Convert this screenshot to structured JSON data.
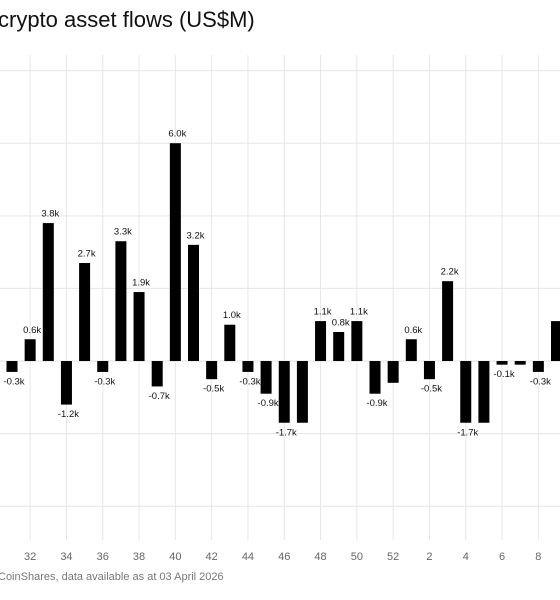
{
  "chart_data": {
    "type": "bar",
    "title": "crypto asset flows (US$M)",
    "source": "CoinShares, data available as at 03 April 2026",
    "categories": [
      null,
      "32",
      null,
      "34",
      null,
      "36",
      null,
      "38",
      null,
      "40",
      null,
      "42",
      null,
      "44",
      null,
      "46",
      null,
      "48",
      null,
      "50",
      null,
      "52",
      null,
      "2",
      null,
      "4",
      null,
      "6",
      null,
      "8",
      null
    ],
    "values": [
      -300,
      600,
      3800,
      -1200,
      2700,
      -300,
      3300,
      1900,
      -700,
      6000,
      3200,
      -500,
      1000,
      -300,
      -900,
      -1700,
      -1700,
      1100,
      800,
      1100,
      -900,
      -600,
      600,
      -500,
      2200,
      -1700,
      -1700,
      -100,
      -100,
      -300,
      1100
    ],
    "value_labels": [
      "-0.3k",
      "0.6k",
      "3.8k",
      "-1.2k",
      "2.7k",
      "-0.3k",
      "3.3k",
      "1.9k",
      "-0.7k",
      "6.0k",
      "3.2k",
      "-0.5k",
      "1.0k",
      "-0.3k",
      "-0.9k",
      "-1.7k",
      null,
      "1.1k",
      "0.8k",
      "1.1k",
      "-0.9k",
      null,
      "0.6k",
      "-0.5k",
      "2.2k",
      "-1.7k",
      null,
      "-0.1k",
      null,
      "-0.3k",
      null
    ],
    "color": "#000000",
    "ylim": [
      -4930,
      8430
    ],
    "yticks": [
      -4000,
      -2000,
      0,
      2000,
      4000,
      6000,
      8000
    ],
    "grid": true
  }
}
